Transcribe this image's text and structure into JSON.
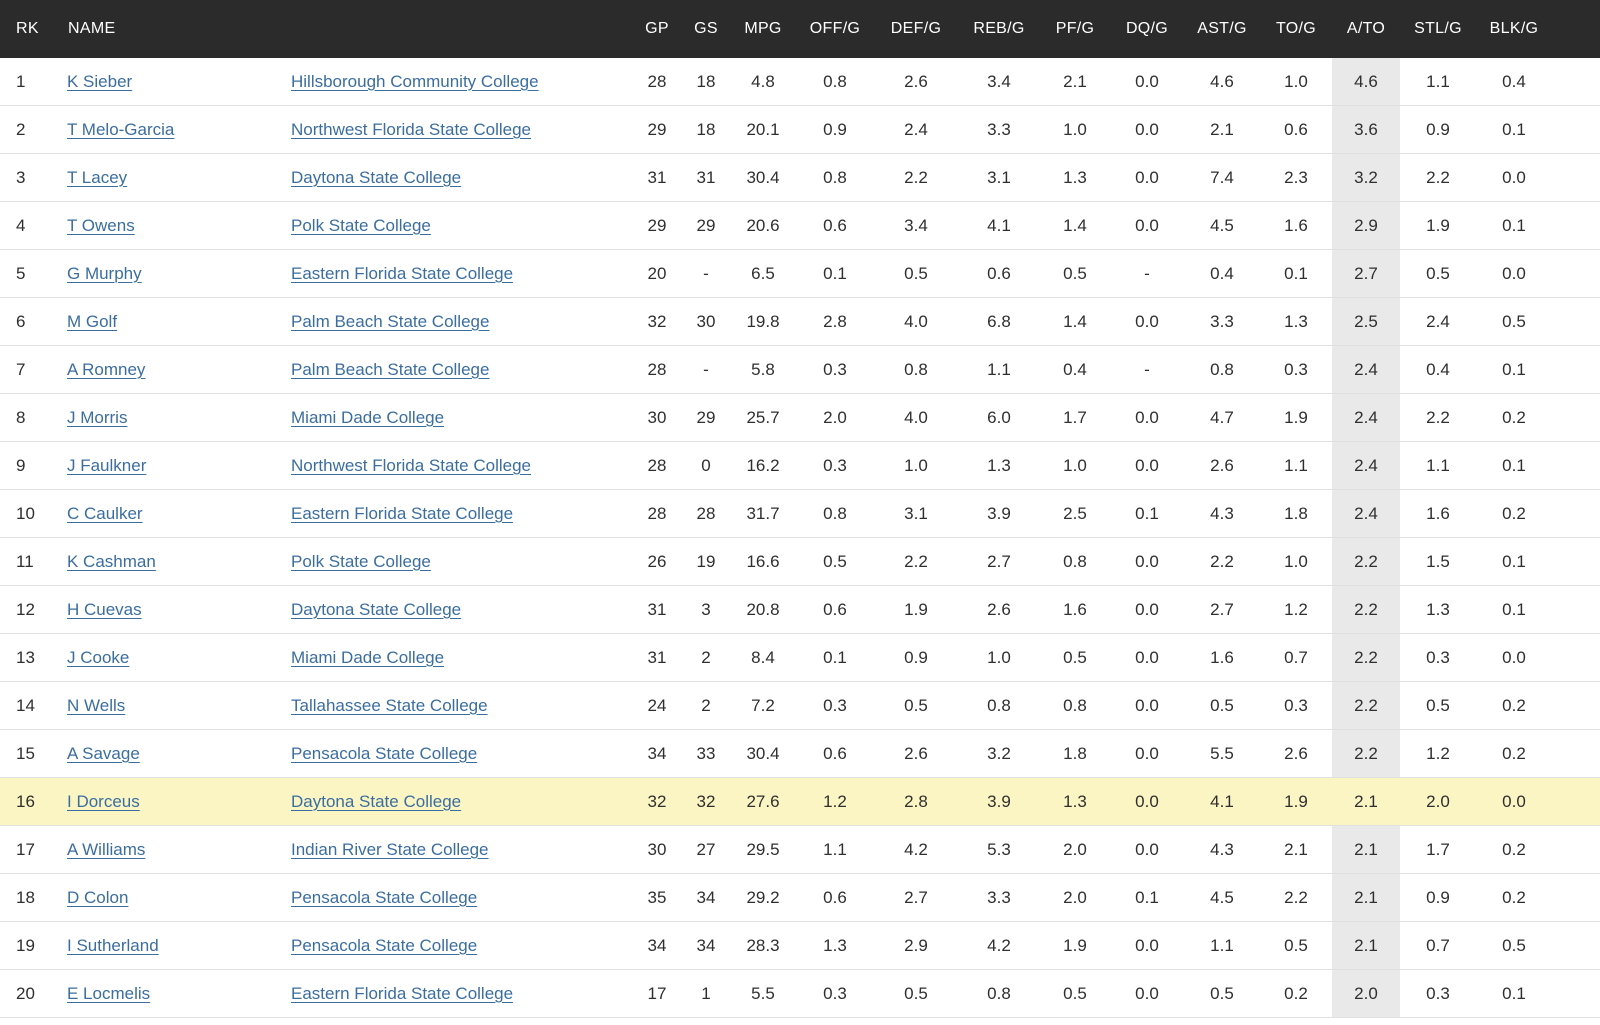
{
  "colors": {
    "header_bg": "#2b2b2b",
    "link": "#3b6e9f",
    "ato_column_bg": "#e9e9e9",
    "highlight_row_bg": "#fbf5c4"
  },
  "table": {
    "columns": [
      {
        "key": "rk",
        "label": "RK",
        "align": "left"
      },
      {
        "key": "name",
        "label": "NAME",
        "align": "left",
        "span": 2
      },
      {
        "key": "gp",
        "label": "GP"
      },
      {
        "key": "gs",
        "label": "GS"
      },
      {
        "key": "mpg",
        "label": "MPG"
      },
      {
        "key": "off",
        "label": "OFF/G"
      },
      {
        "key": "def",
        "label": "DEF/G"
      },
      {
        "key": "reb",
        "label": "REB/G"
      },
      {
        "key": "pf",
        "label": "PF/G"
      },
      {
        "key": "dq",
        "label": "DQ/G"
      },
      {
        "key": "ast",
        "label": "AST/G"
      },
      {
        "key": "to",
        "label": "TO/G"
      },
      {
        "key": "ato",
        "label": "A/TO"
      },
      {
        "key": "stl",
        "label": "STL/G"
      },
      {
        "key": "blk",
        "label": "BLK/G"
      }
    ],
    "rows": [
      {
        "rk": "1",
        "name": "K Sieber",
        "team": "Hillsborough Community College",
        "gp": "28",
        "gs": "18",
        "mpg": "4.8",
        "off": "0.8",
        "def": "2.6",
        "reb": "3.4",
        "pf": "2.1",
        "dq": "0.0",
        "ast": "4.6",
        "to": "1.0",
        "ato": "4.6",
        "stl": "1.1",
        "blk": "0.4",
        "highlight": false
      },
      {
        "rk": "2",
        "name": "T Melo-Garcia",
        "team": "Northwest Florida State College",
        "gp": "29",
        "gs": "18",
        "mpg": "20.1",
        "off": "0.9",
        "def": "2.4",
        "reb": "3.3",
        "pf": "1.0",
        "dq": "0.0",
        "ast": "2.1",
        "to": "0.6",
        "ato": "3.6",
        "stl": "0.9",
        "blk": "0.1",
        "highlight": false
      },
      {
        "rk": "3",
        "name": "T Lacey",
        "team": "Daytona State College",
        "gp": "31",
        "gs": "31",
        "mpg": "30.4",
        "off": "0.8",
        "def": "2.2",
        "reb": "3.1",
        "pf": "1.3",
        "dq": "0.0",
        "ast": "7.4",
        "to": "2.3",
        "ato": "3.2",
        "stl": "2.2",
        "blk": "0.0",
        "highlight": false
      },
      {
        "rk": "4",
        "name": "T Owens",
        "team": "Polk State College",
        "gp": "29",
        "gs": "29",
        "mpg": "20.6",
        "off": "0.6",
        "def": "3.4",
        "reb": "4.1",
        "pf": "1.4",
        "dq": "0.0",
        "ast": "4.5",
        "to": "1.6",
        "ato": "2.9",
        "stl": "1.9",
        "blk": "0.1",
        "highlight": false
      },
      {
        "rk": "5",
        "name": "G Murphy",
        "team": "Eastern Florida State College",
        "gp": "20",
        "gs": "-",
        "mpg": "6.5",
        "off": "0.1",
        "def": "0.5",
        "reb": "0.6",
        "pf": "0.5",
        "dq": "-",
        "ast": "0.4",
        "to": "0.1",
        "ato": "2.7",
        "stl": "0.5",
        "blk": "0.0",
        "highlight": false
      },
      {
        "rk": "6",
        "name": "M Golf",
        "team": "Palm Beach State College",
        "gp": "32",
        "gs": "30",
        "mpg": "19.8",
        "off": "2.8",
        "def": "4.0",
        "reb": "6.8",
        "pf": "1.4",
        "dq": "0.0",
        "ast": "3.3",
        "to": "1.3",
        "ato": "2.5",
        "stl": "2.4",
        "blk": "0.5",
        "highlight": false
      },
      {
        "rk": "7",
        "name": "A Romney",
        "team": "Palm Beach State College",
        "gp": "28",
        "gs": "-",
        "mpg": "5.8",
        "off": "0.3",
        "def": "0.8",
        "reb": "1.1",
        "pf": "0.4",
        "dq": "-",
        "ast": "0.8",
        "to": "0.3",
        "ato": "2.4",
        "stl": "0.4",
        "blk": "0.1",
        "highlight": false
      },
      {
        "rk": "8",
        "name": "J Morris",
        "team": "Miami Dade College",
        "gp": "30",
        "gs": "29",
        "mpg": "25.7",
        "off": "2.0",
        "def": "4.0",
        "reb": "6.0",
        "pf": "1.7",
        "dq": "0.0",
        "ast": "4.7",
        "to": "1.9",
        "ato": "2.4",
        "stl": "2.2",
        "blk": "0.2",
        "highlight": false
      },
      {
        "rk": "9",
        "name": "J Faulkner",
        "team": "Northwest Florida State College",
        "gp": "28",
        "gs": "0",
        "mpg": "16.2",
        "off": "0.3",
        "def": "1.0",
        "reb": "1.3",
        "pf": "1.0",
        "dq": "0.0",
        "ast": "2.6",
        "to": "1.1",
        "ato": "2.4",
        "stl": "1.1",
        "blk": "0.1",
        "highlight": false
      },
      {
        "rk": "10",
        "name": "C Caulker",
        "team": "Eastern Florida State College",
        "gp": "28",
        "gs": "28",
        "mpg": "31.7",
        "off": "0.8",
        "def": "3.1",
        "reb": "3.9",
        "pf": "2.5",
        "dq": "0.1",
        "ast": "4.3",
        "to": "1.8",
        "ato": "2.4",
        "stl": "1.6",
        "blk": "0.2",
        "highlight": false
      },
      {
        "rk": "11",
        "name": "K Cashman",
        "team": "Polk State College",
        "gp": "26",
        "gs": "19",
        "mpg": "16.6",
        "off": "0.5",
        "def": "2.2",
        "reb": "2.7",
        "pf": "0.8",
        "dq": "0.0",
        "ast": "2.2",
        "to": "1.0",
        "ato": "2.2",
        "stl": "1.5",
        "blk": "0.1",
        "highlight": false
      },
      {
        "rk": "12",
        "name": "H Cuevas",
        "team": "Daytona State College",
        "gp": "31",
        "gs": "3",
        "mpg": "20.8",
        "off": "0.6",
        "def": "1.9",
        "reb": "2.6",
        "pf": "1.6",
        "dq": "0.0",
        "ast": "2.7",
        "to": "1.2",
        "ato": "2.2",
        "stl": "1.3",
        "blk": "0.1",
        "highlight": false
      },
      {
        "rk": "13",
        "name": "J Cooke",
        "team": "Miami Dade College",
        "gp": "31",
        "gs": "2",
        "mpg": "8.4",
        "off": "0.1",
        "def": "0.9",
        "reb": "1.0",
        "pf": "0.5",
        "dq": "0.0",
        "ast": "1.6",
        "to": "0.7",
        "ato": "2.2",
        "stl": "0.3",
        "blk": "0.0",
        "highlight": false
      },
      {
        "rk": "14",
        "name": "N Wells",
        "team": "Tallahassee State College",
        "gp": "24",
        "gs": "2",
        "mpg": "7.2",
        "off": "0.3",
        "def": "0.5",
        "reb": "0.8",
        "pf": "0.8",
        "dq": "0.0",
        "ast": "0.5",
        "to": "0.3",
        "ato": "2.2",
        "stl": "0.5",
        "blk": "0.2",
        "highlight": false
      },
      {
        "rk": "15",
        "name": "A Savage",
        "team": "Pensacola State College",
        "gp": "34",
        "gs": "33",
        "mpg": "30.4",
        "off": "0.6",
        "def": "2.6",
        "reb": "3.2",
        "pf": "1.8",
        "dq": "0.0",
        "ast": "5.5",
        "to": "2.6",
        "ato": "2.2",
        "stl": "1.2",
        "blk": "0.2",
        "highlight": false
      },
      {
        "rk": "16",
        "name": "I Dorceus",
        "team": "Daytona State College",
        "gp": "32",
        "gs": "32",
        "mpg": "27.6",
        "off": "1.2",
        "def": "2.8",
        "reb": "3.9",
        "pf": "1.3",
        "dq": "0.0",
        "ast": "4.1",
        "to": "1.9",
        "ato": "2.1",
        "stl": "2.0",
        "blk": "0.0",
        "highlight": true
      },
      {
        "rk": "17",
        "name": "A Williams",
        "team": "Indian River State College",
        "gp": "30",
        "gs": "27",
        "mpg": "29.5",
        "off": "1.1",
        "def": "4.2",
        "reb": "5.3",
        "pf": "2.0",
        "dq": "0.0",
        "ast": "4.3",
        "to": "2.1",
        "ato": "2.1",
        "stl": "1.7",
        "blk": "0.2",
        "highlight": false
      },
      {
        "rk": "18",
        "name": "D Colon",
        "team": "Pensacola State College",
        "gp": "35",
        "gs": "34",
        "mpg": "29.2",
        "off": "0.6",
        "def": "2.7",
        "reb": "3.3",
        "pf": "2.0",
        "dq": "0.1",
        "ast": "4.5",
        "to": "2.2",
        "ato": "2.1",
        "stl": "0.9",
        "blk": "0.2",
        "highlight": false
      },
      {
        "rk": "19",
        "name": "I Sutherland",
        "team": "Pensacola State College",
        "gp": "34",
        "gs": "34",
        "mpg": "28.3",
        "off": "1.3",
        "def": "2.9",
        "reb": "4.2",
        "pf": "1.9",
        "dq": "0.0",
        "ast": "1.1",
        "to": "0.5",
        "ato": "2.1",
        "stl": "0.7",
        "blk": "0.5",
        "highlight": false
      },
      {
        "rk": "20",
        "name": "E Locmelis",
        "team": "Eastern Florida State College",
        "gp": "17",
        "gs": "1",
        "mpg": "5.5",
        "off": "0.3",
        "def": "0.5",
        "reb": "0.8",
        "pf": "0.5",
        "dq": "0.0",
        "ast": "0.5",
        "to": "0.2",
        "ato": "2.0",
        "stl": "0.3",
        "blk": "0.1",
        "highlight": false
      }
    ]
  }
}
